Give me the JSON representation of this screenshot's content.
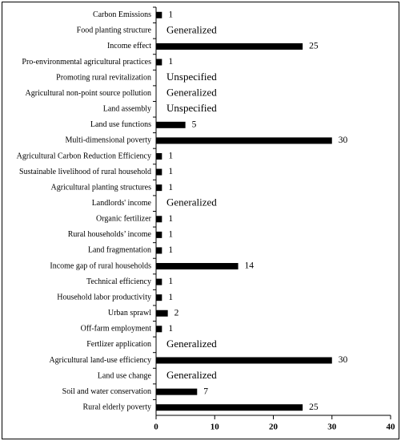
{
  "chart_data": {
    "type": "barh",
    "categories": [
      "Carbon Emissions",
      "Food planting structure",
      "Income effect",
      "Pro-environmental agricultural practices",
      "Promoting rural revitalization",
      "Agricultural non-point source pollution",
      "Land assembly",
      "Land use functions",
      "Multi-dimensional poverty",
      "Agricultural Carbon Reduction Efficiency",
      "Sustainable livelihood of rural household",
      "Agricultural planting structures",
      "Landlords' income",
      "Organic fertilizer",
      "Rural households’ income",
      "Land fragmentation",
      "Income gap of rural households",
      "Technical efficiency",
      "Household labor productivity",
      "Urban sprawl",
      "Off-farm employment",
      "Fertlizer application",
      "Agricultural land-use efficiency",
      "Land use change",
      "Soil and water conservation",
      "Rural elderly poverty"
    ],
    "values": [
      1,
      null,
      25,
      1,
      null,
      null,
      null,
      5,
      30,
      1,
      1,
      1,
      null,
      1,
      1,
      1,
      14,
      1,
      1,
      2,
      1,
      null,
      30,
      null,
      7,
      25
    ],
    "value_labels": [
      null,
      "Generalized",
      null,
      null,
      "Unspecified",
      "Generalized",
      "Unspecified",
      null,
      null,
      null,
      null,
      null,
      "Generalized",
      null,
      null,
      null,
      null,
      null,
      null,
      null,
      null,
      "Generalized",
      null,
      "Generalized",
      null,
      null
    ],
    "color": "#000000",
    "xlim": [
      0,
      40
    ],
    "xticks": [
      0,
      10,
      20,
      30,
      40
    ]
  }
}
